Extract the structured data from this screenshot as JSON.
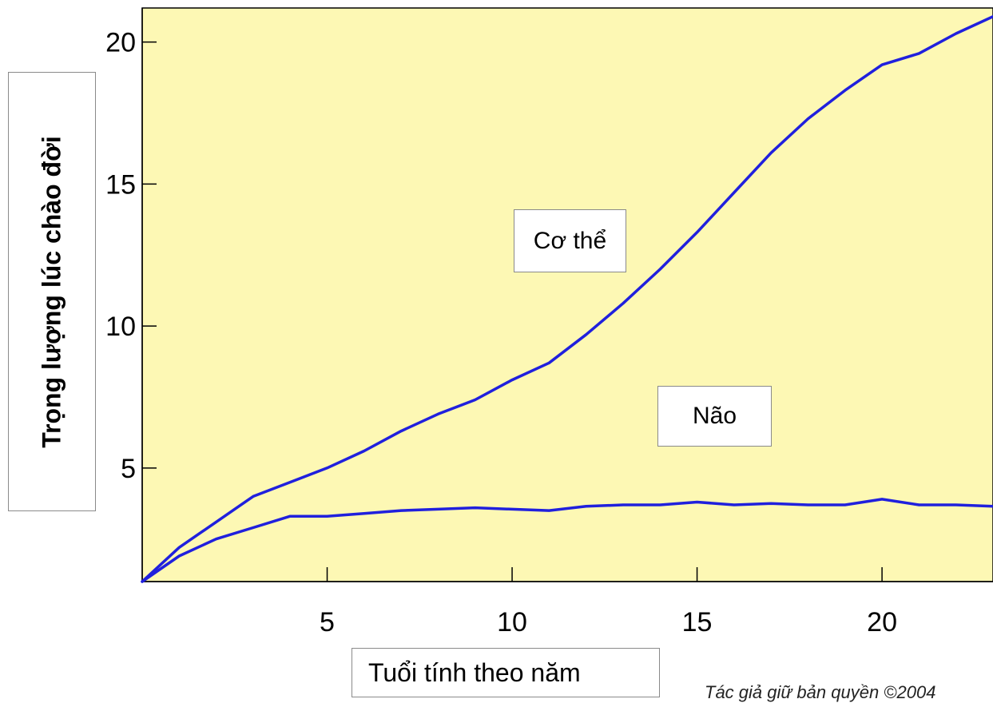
{
  "chart_data": {
    "type": "line",
    "xlabel": "Tuổi tính theo năm",
    "ylabel": "Trọng lượng lúc chào đời",
    "xlim": [
      0,
      23
    ],
    "ylim": [
      1,
      21.2
    ],
    "xticks": [
      5,
      10,
      15,
      20
    ],
    "yticks": [
      5,
      10,
      15,
      20
    ],
    "grid": false,
    "background_color": "#fdf8b4",
    "line_color": "#2020dd",
    "series": [
      {
        "name": "Cơ thể",
        "x": [
          0,
          1,
          2,
          3,
          4,
          5,
          6,
          7,
          8,
          9,
          10,
          11,
          12,
          13,
          14,
          15,
          16,
          17,
          18,
          19,
          20,
          21,
          22,
          23
        ],
        "y": [
          1.0,
          2.2,
          3.1,
          4.0,
          4.5,
          5.0,
          5.6,
          6.3,
          6.9,
          7.4,
          8.1,
          8.7,
          9.7,
          10.8,
          12.0,
          13.3,
          14.7,
          16.1,
          17.3,
          18.3,
          19.2,
          19.6,
          20.3,
          20.9
        ]
      },
      {
        "name": "Não",
        "x": [
          0,
          1,
          2,
          3,
          4,
          5,
          6,
          7,
          8,
          9,
          10,
          11,
          12,
          13,
          14,
          15,
          16,
          17,
          18,
          19,
          20,
          21,
          22,
          23
        ],
        "y": [
          1.0,
          1.9,
          2.5,
          2.9,
          3.3,
          3.3,
          3.4,
          3.5,
          3.55,
          3.6,
          3.55,
          3.5,
          3.65,
          3.7,
          3.7,
          3.8,
          3.7,
          3.75,
          3.7,
          3.7,
          3.9,
          3.7,
          3.7,
          3.65
        ]
      }
    ],
    "annotations": {
      "copyright": "Tác giả giữ bản quyền ©2004"
    }
  }
}
